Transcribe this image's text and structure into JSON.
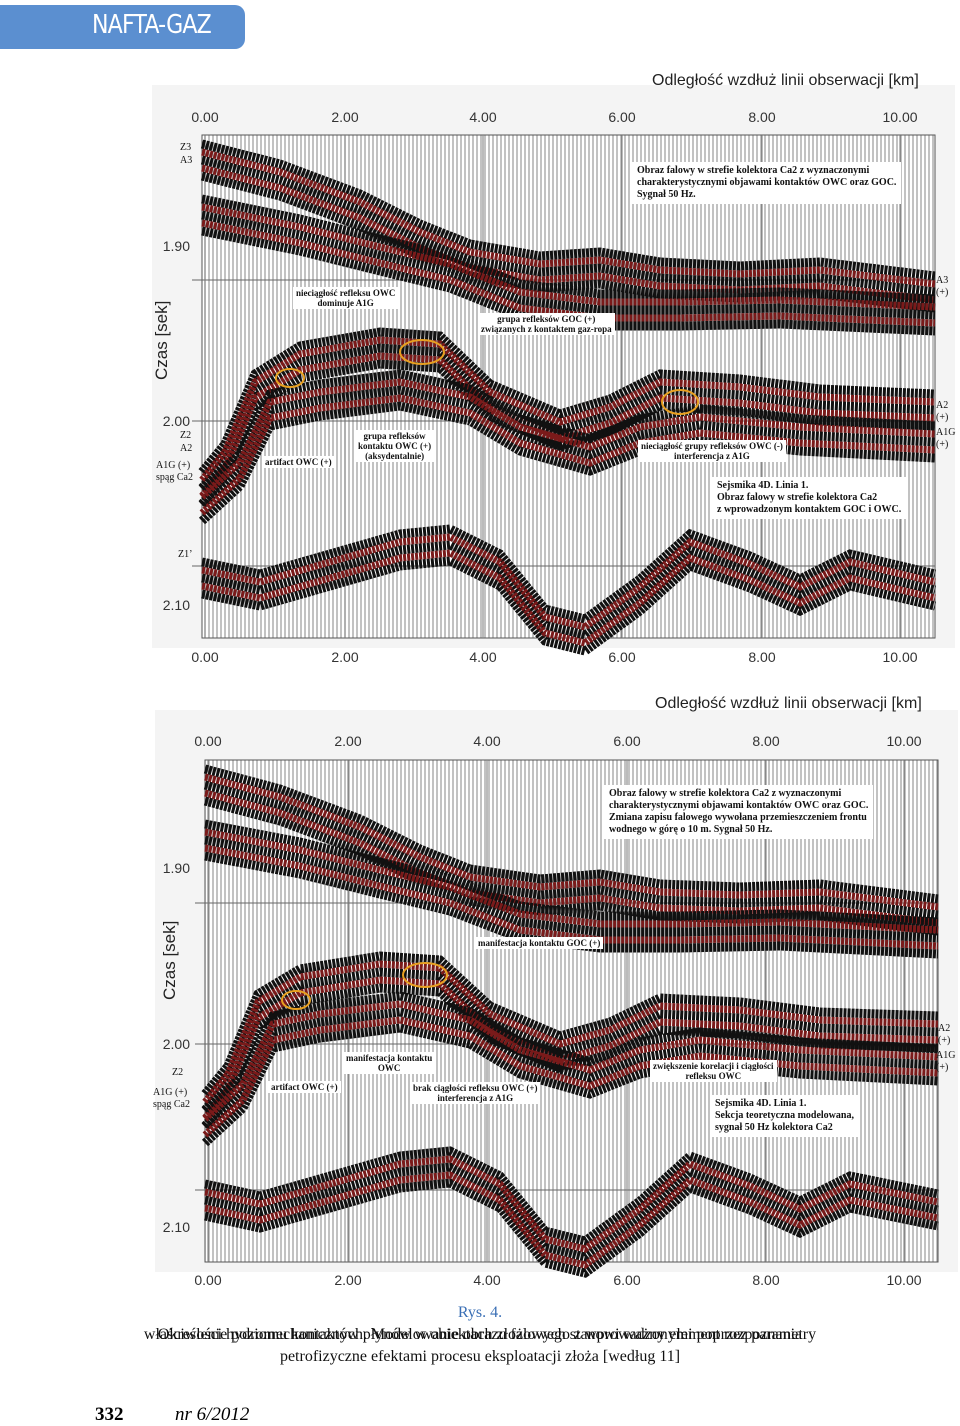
{
  "header": {
    "journal": "NAFTA-GAZ"
  },
  "figures": [
    {
      "x_axis_title": "Odległość wzdłuż linii obserwacji [km]",
      "y_axis_title": "Czas [sek]",
      "x_ticks": [
        "0.00",
        "2.00",
        "4.00",
        "6.00",
        "8.00",
        "10.00"
      ],
      "y_ticks": [
        "1.90",
        "2.00",
        "2.10"
      ],
      "left_labels": [
        "Z3",
        "A3",
        "Z2",
        "A2",
        "A1G (+)",
        "spąg Ca2",
        "Z1’"
      ],
      "right_labels": [
        [
          "A3",
          "(+)"
        ],
        [
          "A2",
          "(+)"
        ],
        [
          "A1G",
          "(+)"
        ]
      ],
      "annotations": [
        [
          "nieciągłość refleksu OWC",
          "dominuje A1G"
        ],
        [
          "grupa refleksów GOC (+)",
          "związanych z kontaktem gaz-ropa"
        ],
        [
          "artifact OWC (+)"
        ],
        [
          "grupa refleksów",
          "kontaktu OWC (+)",
          "(aksydentalnie)"
        ],
        [
          "nieciągłość grupy refleksów OWC (-)",
          "interferencja z A1G"
        ]
      ],
      "info_boxes": [
        [
          "Obraz falowy w strefie kolektora Ca2 z wyznaczonymi",
          "charakterystycznymi objawami kontaktów OWC oraz GOC.",
          "Sygnał 50 Hz."
        ],
        [
          "Sejsmika 4D. Linia 1.",
          "Obraz falowy w strefie kolektora Ca2",
          "z wprowadzonym kontaktem GOC i OWC."
        ]
      ]
    },
    {
      "x_axis_title": "Odległość wzdłuż linii obserwacji [km]",
      "y_axis_title": "Czas [sek]",
      "x_ticks": [
        "0.00",
        "2.00",
        "4.00",
        "6.00",
        "8.00",
        "10.00"
      ],
      "y_ticks": [
        "1.90",
        "2.00",
        "2.10"
      ],
      "left_labels": [
        "Z2",
        "A1G (+)",
        "spąg Ca2"
      ],
      "right_labels": [
        [
          "A2",
          "(+)"
        ],
        [
          "A1G",
          "(+)"
        ]
      ],
      "annotations": [
        [
          "manifestacja kontaktu GOC (+)"
        ],
        [
          "artifact OWC (+)"
        ],
        [
          "manifestacja kontaktu",
          "OWC"
        ],
        [
          "brak ciągłości refleksu OWC (+)",
          "interferencja z A1G"
        ],
        [
          "zwiększenie korelacji i ciągłości",
          "refleksu OWC"
        ]
      ],
      "info_boxes": [
        [
          "Obraz falowy w strefie kolektora Ca2 z wyznaczonymi",
          "charakterystycznymi objawami kontaktów OWC oraz GOC.",
          "Zmiana zapisu falowego wywołana przemieszczeniem frontu",
          "wodnego w górę o 10 m.  Sygnał 50 Hz."
        ],
        [
          "Sejsmika 4D. Linia 1.",
          "Sekcja teoretyczna modelowana,",
          "sygnał 50 Hz kolektora Ca2"
        ]
      ]
    }
  ],
  "caption": {
    "label": "Rys. 4.",
    "lines": [
      "Określenie poziomu kontaktów płynów w obiektach złożowych stanowi ważny element rozpoznania",
      "właściwości hydromechanicznych. Modelowanie obrazu falowego z wprowadzonymi poprzez parametry",
      "petrofizyczne efektami procesu eksploatacji złoża [według 11]"
    ]
  },
  "footer": {
    "page": "332",
    "issue": "nr 6/2012"
  }
}
